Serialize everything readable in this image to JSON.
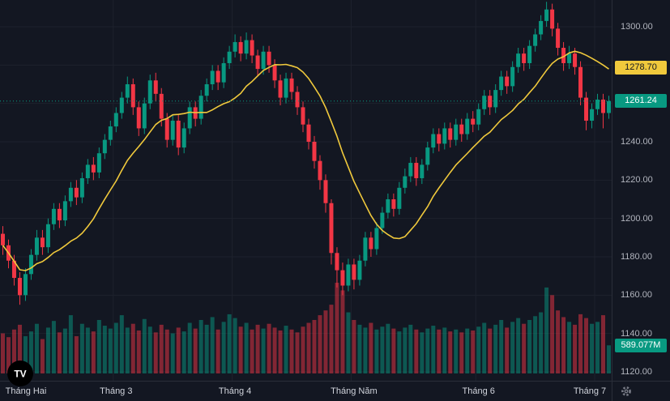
{
  "colors": {
    "background": "#131722",
    "grid": "#1e222d",
    "up": "#089981",
    "down": "#f23645",
    "volume_up": "rgba(8,153,129,0.5)",
    "volume_down": "rgba(242,54,69,0.5)",
    "ma_line": "#f0c93c",
    "last_price_line": "#089981",
    "axis_text": "#b2b5be",
    "time_text": "#d1d4dc",
    "badge_ma_bg": "#f0c93c",
    "badge_ma_text": "#131722",
    "badge_price_bg": "#089981",
    "badge_volume_bg": "#089981",
    "badge_text": "#ffffff",
    "icon_gray": "#787b86"
  },
  "badges": {
    "ma": {
      "text": "1278.70",
      "value": 1278.7
    },
    "last_price": {
      "text": "1261.24",
      "value": 1261.24
    },
    "volume": {
      "text": "589.077M",
      "value_millions": 589.077
    }
  },
  "logo": {
    "text": "TV"
  },
  "chart_data": {
    "type": "candlestick",
    "note": "daily candles with volume pane and moving-average overlay",
    "price_ticks": [
      {
        "label": "1300.00",
        "value": 1300
      },
      {
        "label": "1280.00",
        "value": 1280
      },
      {
        "label": "1260.00",
        "value": 1260
      },
      {
        "label": "1240.00",
        "value": 1240
      },
      {
        "label": "1220.00",
        "value": 1220
      },
      {
        "label": "1200.00",
        "value": 1200
      },
      {
        "label": "1180.00",
        "value": 1180
      },
      {
        "label": "1160.00",
        "value": 1160
      },
      {
        "label": "1140.00",
        "value": 1140
      },
      {
        "label": "1120.00",
        "value": 1120
      }
    ],
    "time_axis": [
      {
        "label": "Tháng Hai",
        "index": 0
      },
      {
        "label": "Tháng 3",
        "index": 20
      },
      {
        "label": "Tháng 4",
        "index": 41
      },
      {
        "label": "Tháng Năm",
        "index": 62
      },
      {
        "label": "Tháng 6",
        "index": 84
      },
      {
        "label": "Tháng 7",
        "index": 105
      }
    ],
    "ylim": [
      1115,
      1314
    ],
    "overlays": [
      {
        "name": "moving-average",
        "period": 14,
        "color": "#f0c93c",
        "last_value": 1278.7
      }
    ],
    "last_close": 1261.24,
    "volume_axis_max_millions": 1900,
    "candles": [
      [
        1192,
        1196,
        1181,
        1186
      ],
      [
        1186,
        1189,
        1174,
        1178
      ],
      [
        1178,
        1181,
        1165,
        1169
      ],
      [
        1169,
        1172,
        1155,
        1160
      ],
      [
        1160,
        1174,
        1157,
        1171
      ],
      [
        1171,
        1184,
        1168,
        1181
      ],
      [
        1181,
        1194,
        1178,
        1190
      ],
      [
        1190,
        1194,
        1181,
        1185
      ],
      [
        1185,
        1200,
        1182,
        1197
      ],
      [
        1197,
        1208,
        1194,
        1205
      ],
      [
        1205,
        1208,
        1195,
        1199
      ],
      [
        1199,
        1212,
        1196,
        1209
      ],
      [
        1209,
        1219,
        1206,
        1216
      ],
      [
        1216,
        1220,
        1207,
        1211
      ],
      [
        1211,
        1224,
        1208,
        1221
      ],
      [
        1221,
        1231,
        1218,
        1228
      ],
      [
        1228,
        1232,
        1220,
        1224
      ],
      [
        1224,
        1237,
        1221,
        1234
      ],
      [
        1234,
        1244,
        1231,
        1241
      ],
      [
        1241,
        1251,
        1238,
        1248
      ],
      [
        1248,
        1258,
        1245,
        1255
      ],
      [
        1255,
        1266,
        1252,
        1263
      ],
      [
        1263,
        1274,
        1260,
        1270
      ],
      [
        1270,
        1273,
        1254,
        1258
      ],
      [
        1258,
        1261,
        1243,
        1247
      ],
      [
        1247,
        1263,
        1244,
        1260
      ],
      [
        1260,
        1275,
        1257,
        1272
      ],
      [
        1272,
        1276,
        1261,
        1265
      ],
      [
        1265,
        1268,
        1248,
        1252
      ],
      [
        1252,
        1255,
        1237,
        1241
      ],
      [
        1241,
        1254,
        1238,
        1251
      ],
      [
        1251,
        1254,
        1233,
        1237
      ],
      [
        1237,
        1250,
        1234,
        1247
      ],
      [
        1247,
        1261,
        1244,
        1258
      ],
      [
        1258,
        1261,
        1248,
        1252
      ],
      [
        1252,
        1267,
        1249,
        1264
      ],
      [
        1264,
        1273,
        1261,
        1270
      ],
      [
        1270,
        1280,
        1267,
        1277
      ],
      [
        1277,
        1280,
        1267,
        1271
      ],
      [
        1271,
        1284,
        1268,
        1281
      ],
      [
        1281,
        1290,
        1278,
        1287
      ],
      [
        1287,
        1296,
        1284,
        1292
      ],
      [
        1292,
        1295,
        1282,
        1286
      ],
      [
        1286,
        1297,
        1283,
        1293
      ],
      [
        1293,
        1296,
        1281,
        1285
      ],
      [
        1285,
        1288,
        1274,
        1278
      ],
      [
        1278,
        1290,
        1275,
        1287
      ],
      [
        1287,
        1290,
        1276,
        1280
      ],
      [
        1280,
        1283,
        1268,
        1272
      ],
      [
        1272,
        1275,
        1259,
        1263
      ],
      [
        1263,
        1276,
        1260,
        1273
      ],
      [
        1273,
        1276,
        1262,
        1266
      ],
      [
        1266,
        1269,
        1254,
        1258
      ],
      [
        1258,
        1261,
        1245,
        1249
      ],
      [
        1249,
        1252,
        1236,
        1240
      ],
      [
        1240,
        1243,
        1226,
        1230
      ],
      [
        1230,
        1233,
        1215,
        1220
      ],
      [
        1220,
        1223,
        1203,
        1208
      ],
      [
        1208,
        1210,
        1176,
        1182
      ],
      [
        1182,
        1185,
        1164,
        1173
      ],
      [
        1173,
        1177,
        1160,
        1165
      ],
      [
        1165,
        1179,
        1162,
        1176
      ],
      [
        1176,
        1179,
        1163,
        1168
      ],
      [
        1168,
        1181,
        1165,
        1178
      ],
      [
        1178,
        1193,
        1175,
        1190
      ],
      [
        1190,
        1193,
        1180,
        1184
      ],
      [
        1184,
        1198,
        1181,
        1195
      ],
      [
        1195,
        1206,
        1192,
        1203
      ],
      [
        1203,
        1213,
        1200,
        1210
      ],
      [
        1210,
        1213,
        1201,
        1205
      ],
      [
        1205,
        1219,
        1202,
        1216
      ],
      [
        1216,
        1226,
        1213,
        1222
      ],
      [
        1222,
        1232,
        1219,
        1229
      ],
      [
        1229,
        1232,
        1217,
        1221
      ],
      [
        1221,
        1231,
        1218,
        1228
      ],
      [
        1228,
        1240,
        1225,
        1237
      ],
      [
        1237,
        1247,
        1234,
        1244
      ],
      [
        1244,
        1247,
        1235,
        1239
      ],
      [
        1239,
        1250,
        1236,
        1247
      ],
      [
        1247,
        1250,
        1237,
        1241
      ],
      [
        1241,
        1252,
        1238,
        1249
      ],
      [
        1249,
        1252,
        1240,
        1244
      ],
      [
        1244,
        1255,
        1241,
        1252
      ],
      [
        1252,
        1256,
        1245,
        1249
      ],
      [
        1249,
        1260,
        1246,
        1257
      ],
      [
        1257,
        1267,
        1254,
        1264
      ],
      [
        1264,
        1267,
        1254,
        1258
      ],
      [
        1258,
        1270,
        1255,
        1267
      ],
      [
        1267,
        1277,
        1264,
        1274
      ],
      [
        1274,
        1277,
        1265,
        1269
      ],
      [
        1269,
        1282,
        1266,
        1279
      ],
      [
        1279,
        1289,
        1276,
        1286
      ],
      [
        1286,
        1289,
        1277,
        1281
      ],
      [
        1281,
        1293,
        1278,
        1290
      ],
      [
        1290,
        1299,
        1287,
        1296
      ],
      [
        1296,
        1306,
        1293,
        1303
      ],
      [
        1303,
        1313,
        1300,
        1309
      ],
      [
        1309,
        1312,
        1295,
        1299
      ],
      [
        1299,
        1302,
        1285,
        1289
      ],
      [
        1289,
        1292,
        1277,
        1281
      ],
      [
        1281,
        1290,
        1278,
        1286
      ],
      [
        1286,
        1289,
        1275,
        1279
      ],
      [
        1279,
        1282,
        1259,
        1263
      ],
      [
        1263,
        1266,
        1246,
        1251
      ],
      [
        1251,
        1260,
        1247,
        1257
      ],
      [
        1257,
        1265,
        1254,
        1262
      ],
      [
        1262,
        1265,
        1247,
        1255
      ],
      [
        1255,
        1264,
        1252,
        1261.24
      ]
    ],
    "volumes_millions": [
      840,
      760,
      920,
      1020,
      780,
      880,
      1040,
      720,
      960,
      1100,
      860,
      940,
      1220,
      780,
      1040,
      960,
      880,
      1120,
      1000,
      940,
      1060,
      1220,
      960,
      1040,
      900,
      1140,
      980,
      860,
      1020,
      920,
      840,
      960,
      880,
      1060,
      940,
      1120,
      1020,
      1180,
      920,
      1080,
      1240,
      1160,
      980,
      1060,
      920,
      1020,
      940,
      1040,
      960,
      900,
      1000,
      920,
      860,
      980,
      1060,
      1120,
      1220,
      1320,
      1440,
      1900,
      1740,
      1280,
      1120,
      1020,
      960,
      1060,
      920,
      980,
      1040,
      940,
      880,
      960,
      1020,
      920,
      860,
      940,
      1000,
      920,
      960,
      880,
      920,
      860,
      940,
      900,
      980,
      1060,
      940,
      1020,
      1120,
      960,
      1080,
      1160,
      1040,
      1120,
      1200,
      1280,
      1800,
      1640,
      1320,
      1180,
      1080,
      1020,
      1240,
      1160,
      1040,
      1080,
      1220,
      589.077
    ]
  }
}
